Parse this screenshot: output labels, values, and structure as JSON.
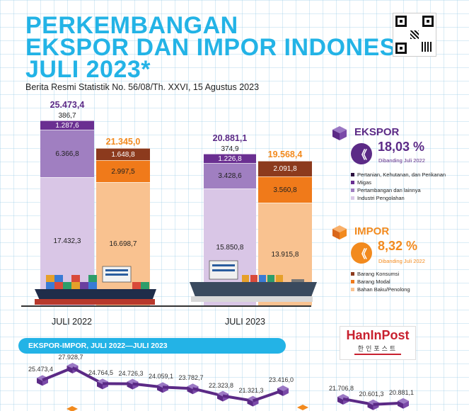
{
  "header": {
    "title_line1": "PERKEMBANGAN",
    "title_line2": "EKSPOR DAN IMPOR INDONESIA",
    "title_line3": "JULI 2023*",
    "subtitle": "Berita Resmi Statistik No. 56/08/Th. XXVI, 15 Agustus 2023"
  },
  "colors": {
    "title": "#23b3e6",
    "ekspor_total": "#5b2a86",
    "impor_total": "#f28a1e",
    "ekspor_pertanian": "#2d1240",
    "ekspor_migas": "#6a2f91",
    "ekspor_pertambangan": "#a07fc1",
    "ekspor_industri": "#d9c6e6",
    "impor_konsumsi": "#8c3a1d",
    "impor_modal": "#f07a1a",
    "impor_bahan": "#f9c290"
  },
  "ekspor": {
    "label": "EKSPOR",
    "pct": "18,03 %",
    "note": "Dibanding Juli 2022",
    "icon": "chevron-down-double-icon",
    "legend": [
      "Pertanian, Kehutanan, dan Perikanan",
      "Migas",
      "Pertambangan dan lainnya",
      "Industri Pengolahan"
    ]
  },
  "impor": {
    "label": "IMPOR",
    "pct": "8,32 %",
    "note": "Dibanding Juli 2022",
    "icon": "chevron-down-double-icon",
    "legend": [
      "Barang Konsumsi",
      "Barang Modal",
      "Bahan Baku/Penolong"
    ]
  },
  "trend_banner": "EKSPOR-IMPOR, JULI 2022—JULI 2023",
  "logo_text": "HanInPost",
  "logo_sub": "한인포스트",
  "chart_data": [
    {
      "type": "bar",
      "stacked": true,
      "categories": [
        "JULI 2022",
        "JULI 2023"
      ],
      "groups": [
        {
          "name": "Ekspor",
          "totals": [
            "25.473,4",
            "20.881,1"
          ],
          "series": [
            {
              "name": "Industri Pengolahan",
              "values": [
                17432.3,
                15850.8
              ],
              "labels": [
                "17.432,3",
                "15.850,8"
              ]
            },
            {
              "name": "Pertambangan dan lainnya",
              "values": [
                6366.8,
                3428.6
              ],
              "labels": [
                "6.366,8",
                "3.428,6"
              ]
            },
            {
              "name": "Migas",
              "values": [
                1287.6,
                1226.8
              ],
              "labels": [
                "1.287,6",
                "1.226,8"
              ]
            },
            {
              "name": "Pertanian, Kehutanan, dan Perikanan",
              "values": [
                386.7,
                374.9
              ],
              "labels": [
                "386,7",
                "374,9"
              ]
            }
          ]
        },
        {
          "name": "Impor",
          "totals": [
            "21.345,0",
            "19.568,4"
          ],
          "series": [
            {
              "name": "Bahan Baku/Penolong",
              "values": [
                16698.7,
                13915.8
              ],
              "labels": [
                "16.698,7",
                "13.915,8"
              ]
            },
            {
              "name": "Barang Modal",
              "values": [
                2997.5,
                3560.8
              ],
              "labels": [
                "2.997,5",
                "3.560,8"
              ]
            },
            {
              "name": "Barang Konsumsi",
              "values": [
                1648.8,
                2091.8
              ],
              "labels": [
                "1.648,8",
                "2.091,8"
              ]
            }
          ]
        }
      ]
    },
    {
      "type": "line",
      "title": "EKSPOR-IMPOR, JULI 2022—JULI 2023",
      "series": [
        {
          "name": "Ekspor",
          "points": [
            {
              "value": 25473.4,
              "label": "25.473,4"
            },
            {
              "value": 27928.7,
              "label": "27.928,7"
            },
            {
              "value": 24764.5,
              "label": "24.764,5"
            },
            {
              "value": 24726.3,
              "label": "24.726,3"
            },
            {
              "value": 24059.1,
              "label": "24.059,1"
            },
            {
              "value": 23782.7,
              "label": "23.782,7"
            },
            {
              "value": 22323.8,
              "label": "22.323,8"
            },
            {
              "value": 21321.3,
              "label": "21.321,3"
            },
            {
              "value": 23416.0,
              "label": "23.416,0"
            },
            {
              "value": null,
              "label": ""
            },
            {
              "value": 21706.8,
              "label": "21.706,8"
            },
            {
              "value": 20601.3,
              "label": "20.601,3"
            },
            {
              "value": 20881.1,
              "label": "20.881,1"
            }
          ]
        }
      ]
    }
  ]
}
